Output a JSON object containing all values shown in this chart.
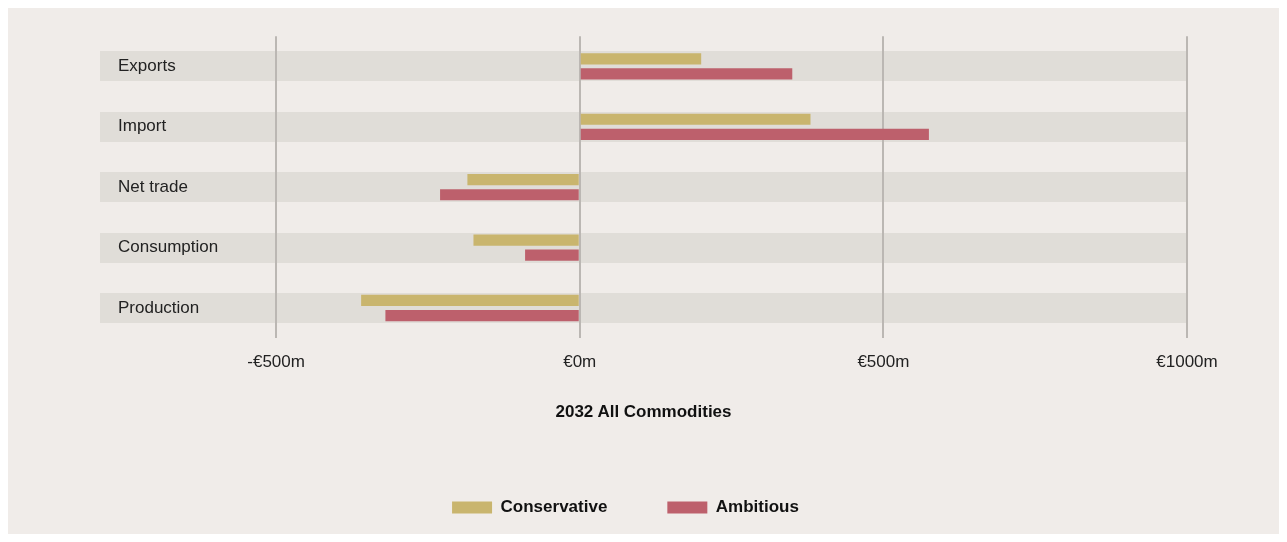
{
  "chart_data": {
    "type": "bar",
    "orientation": "horizontal",
    "xlabel": "2032 All Commodities",
    "categories": [
      "Exports",
      "Import",
      "Net trade",
      "Consumption",
      "Production"
    ],
    "series": [
      {
        "name": "Conservative",
        "color": "#c9b56e",
        "values": [
          200,
          380,
          -185,
          -175,
          -360
        ]
      },
      {
        "name": "Ambitious",
        "color": "#bd606c",
        "values": [
          350,
          575,
          -230,
          -90,
          -320
        ]
      }
    ],
    "xlim": [
      -790,
      1000
    ],
    "xticks": [
      {
        "value": -500,
        "label": "-€500m"
      },
      {
        "value": 0,
        "label": "€0m"
      },
      {
        "value": 500,
        "label": "€500m"
      },
      {
        "value": 1000,
        "label": "€1000m"
      }
    ],
    "grid": "x",
    "legend": "bottom"
  }
}
